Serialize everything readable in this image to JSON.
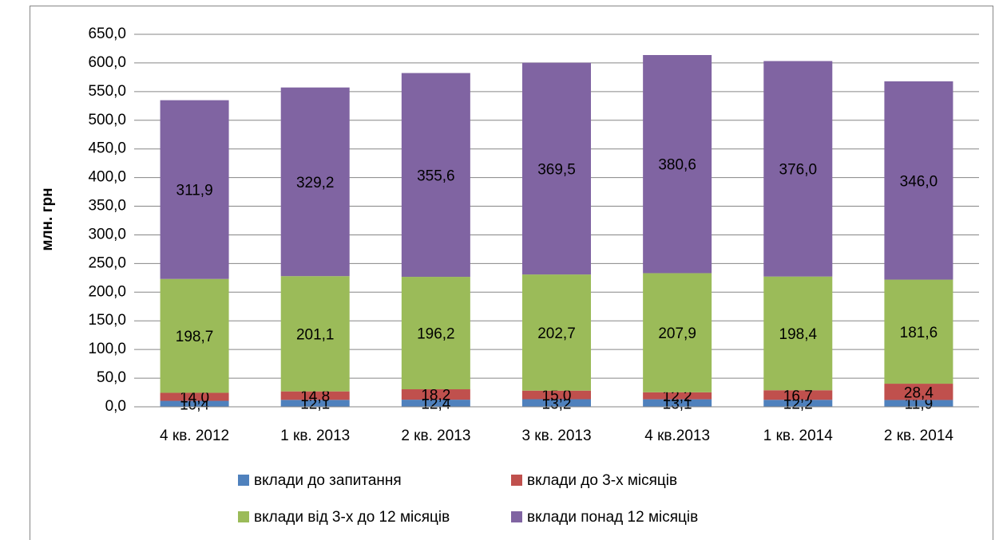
{
  "chart_data": {
    "type": "stacked_bar",
    "y_label": "млн. грн",
    "categories": [
      "4 кв. 2012",
      "1 кв. 2013",
      "2 кв. 2013",
      "3 кв. 2013",
      "4 кв.2013",
      "1 кв. 2014",
      "2 кв. 2014"
    ],
    "series": [
      {
        "name": "вклади до запитання",
        "color": "#4f81bd",
        "values": [
          10.4,
          12.1,
          12.4,
          13.2,
          13.1,
          12.2,
          11.9
        ],
        "value_labels": [
          "10,4",
          "12,1",
          "12,4",
          "13,2",
          "13,1",
          "12,2",
          "11,9"
        ]
      },
      {
        "name": "вклади до 3-х місяців",
        "color": "#c0504d",
        "values": [
          14.0,
          14.8,
          18.2,
          15.0,
          12.2,
          16.7,
          28.4
        ],
        "value_labels": [
          "14,0",
          "14,8",
          "18,2",
          "15,0",
          "12,2",
          "16,7",
          "28,4"
        ]
      },
      {
        "name": "вклади від 3-х до 12 місяців",
        "color": "#9bbb59",
        "values": [
          198.7,
          201.1,
          196.2,
          202.7,
          207.9,
          198.4,
          181.6
        ],
        "value_labels": [
          "198,7",
          "201,1",
          "196,2",
          "202,7",
          "207,9",
          "198,4",
          "181,6"
        ]
      },
      {
        "name": "вклади понад 12 місяців",
        "color": "#8064a2",
        "values": [
          311.9,
          329.2,
          355.6,
          369.5,
          380.6,
          376.0,
          346.0
        ],
        "value_labels": [
          "311,9",
          "329,2",
          "355,6",
          "369,5",
          "380,6",
          "376,0",
          "346,0"
        ]
      }
    ],
    "ylim": [
      0,
      650
    ],
    "yticks": [
      {
        "value": 0,
        "label": "0,0"
      },
      {
        "value": 50,
        "label": "50,0"
      },
      {
        "value": 100,
        "label": "100,0"
      },
      {
        "value": 150,
        "label": "150,0"
      },
      {
        "value": 200,
        "label": "200,0"
      },
      {
        "value": 250,
        "label": "250,0"
      },
      {
        "value": 300,
        "label": "300,0"
      },
      {
        "value": 350,
        "label": "350,0"
      },
      {
        "value": 400,
        "label": "400,0"
      },
      {
        "value": 450,
        "label": "450,0"
      },
      {
        "value": 500,
        "label": "500,0"
      },
      {
        "value": 550,
        "label": "550,0"
      },
      {
        "value": 600,
        "label": "600,0"
      },
      {
        "value": 650,
        "label": "650,0"
      }
    ],
    "grid": true,
    "legend": "bottom"
  }
}
